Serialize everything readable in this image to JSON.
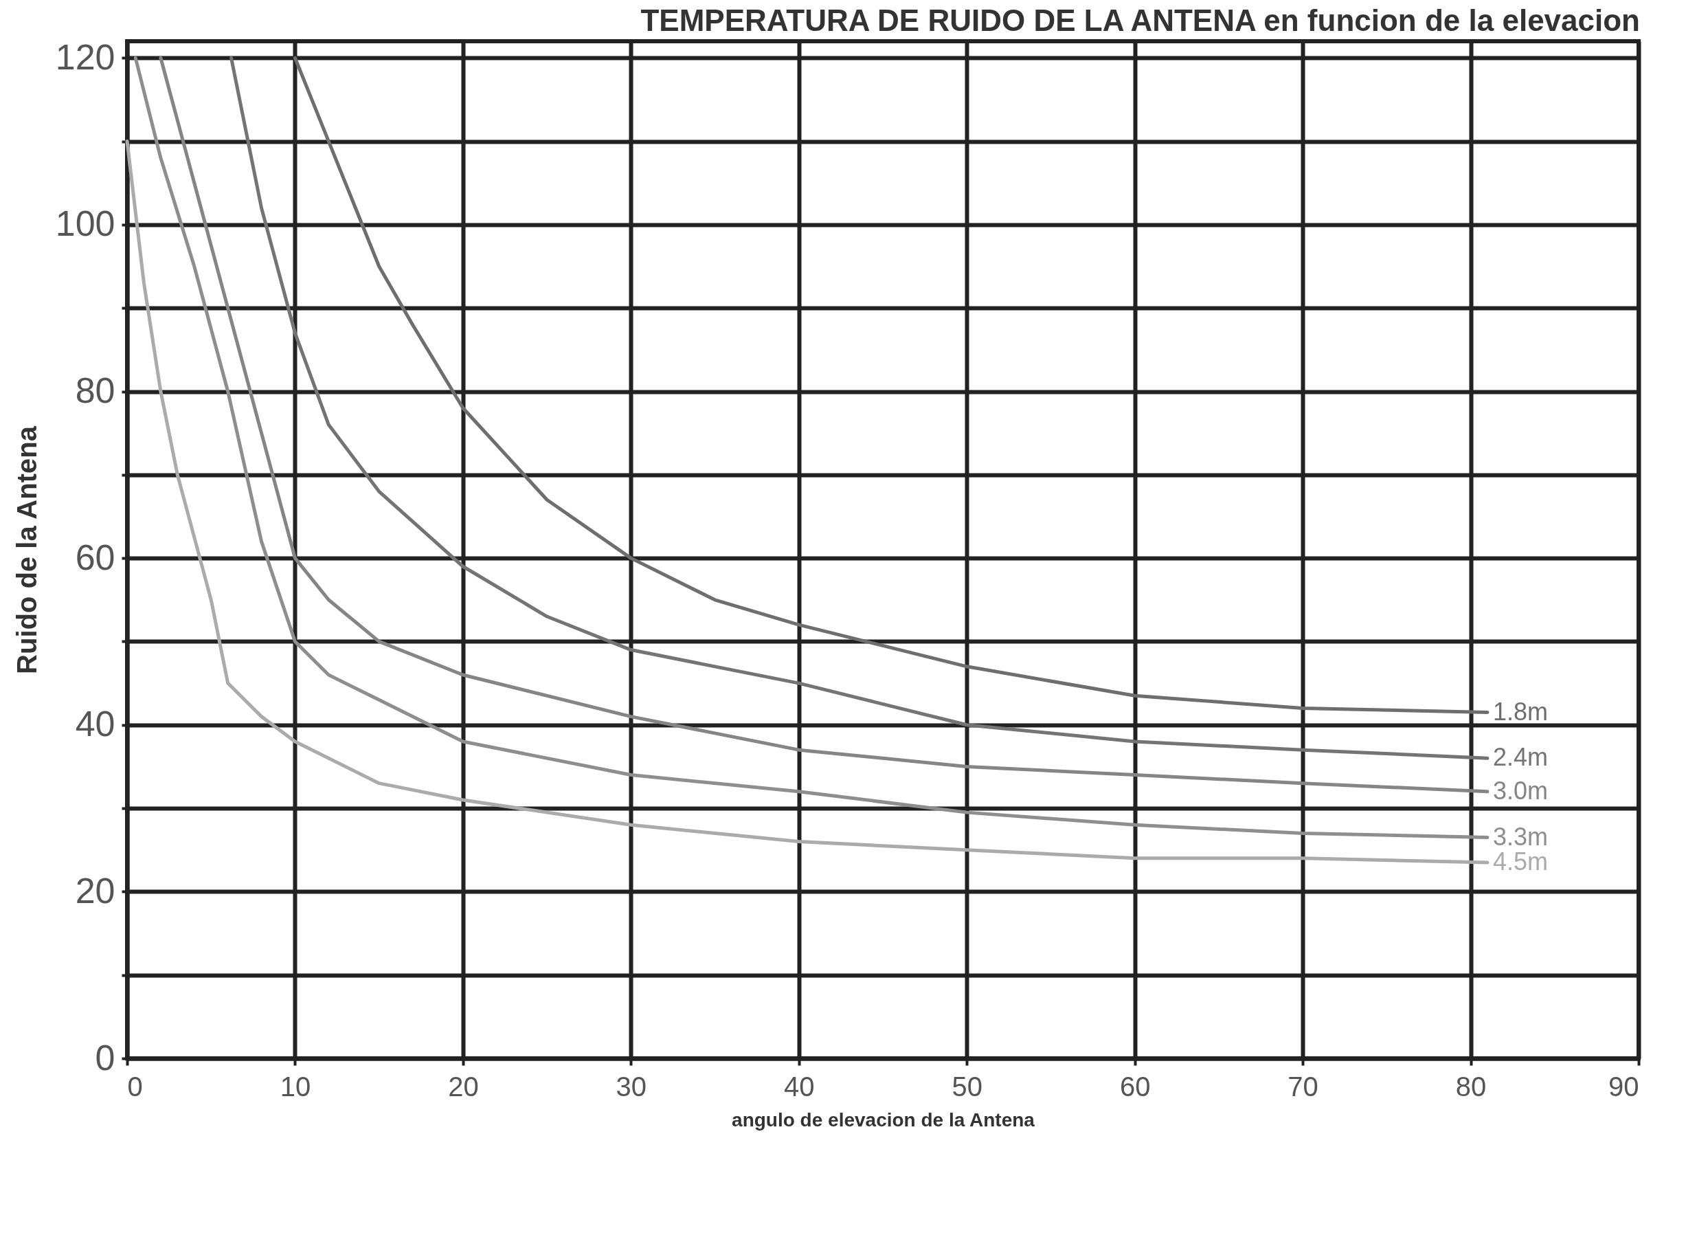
{
  "chart_data": {
    "type": "line",
    "title": "TEMPERATURA DE RUIDO DE LA ANTENA en funcion de la elevacion",
    "xlabel": "angulo de elevacion de la Antena",
    "ylabel": "Ruido de la Antena",
    "xlim": [
      0,
      90
    ],
    "ylim": [
      0,
      122
    ],
    "xticks": [
      0,
      10,
      20,
      30,
      40,
      50,
      60,
      70,
      80,
      90
    ],
    "yticks": [
      0,
      {
        "value": 10,
        "label": null
      },
      20,
      {
        "value": 30,
        "label": null
      },
      40,
      {
        "value": 50,
        "label": null
      },
      60,
      {
        "value": 70,
        "label": null
      },
      80,
      {
        "value": 90,
        "label": null
      },
      100,
      {
        "value": 110,
        "label": null
      },
      120
    ],
    "grid": true,
    "series": [
      {
        "name": "1.8m",
        "color": "#6e6e6e",
        "x": [
          10,
          12,
          15,
          17,
          20,
          25,
          30,
          35,
          40,
          50,
          60,
          70,
          81
        ],
        "values": [
          120,
          110,
          95,
          88,
          78,
          67,
          60,
          55,
          52,
          47,
          43.5,
          42,
          41.5
        ]
      },
      {
        "name": "2.4m",
        "color": "#747474",
        "x": [
          6.2,
          8,
          10,
          12,
          15,
          20,
          25,
          30,
          40,
          50,
          60,
          70,
          81
        ],
        "values": [
          120,
          102,
          87,
          76,
          68,
          59,
          53,
          49,
          45,
          40,
          38,
          37,
          36
        ]
      },
      {
        "name": "3.0m",
        "color": "#858585",
        "x": [
          2,
          4,
          6,
          8,
          10,
          12,
          15,
          20,
          30,
          40,
          50,
          60,
          70,
          81
        ],
        "values": [
          120,
          105,
          90,
          75,
          60,
          55,
          50,
          46,
          41,
          37,
          35,
          34,
          33,
          32
        ]
      },
      {
        "name": "3.3m",
        "color": "#8e8e8e",
        "x": [
          0.5,
          2,
          4,
          6,
          8,
          10,
          12,
          15,
          20,
          30,
          40,
          50,
          60,
          70,
          81
        ],
        "values": [
          120,
          108,
          95,
          80,
          62,
          50,
          46,
          43,
          38,
          34,
          32,
          29.5,
          28,
          27,
          26.5
        ]
      },
      {
        "name": "4.5m",
        "color": "#ababab",
        "x": [
          0,
          1,
          2,
          3,
          5,
          6,
          8,
          10,
          15,
          20,
          30,
          40,
          50,
          60,
          70,
          81
        ],
        "values": [
          110,
          93,
          80,
          70,
          55,
          45,
          41,
          38,
          33,
          31,
          28,
          26,
          25,
          24,
          24,
          23.5
        ]
      }
    ]
  }
}
